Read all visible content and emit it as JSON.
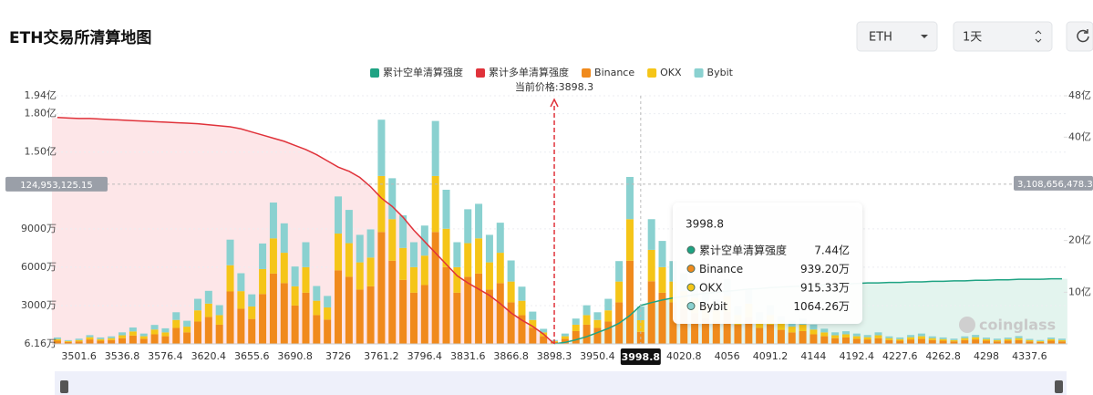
{
  "page_title": "ETH交易所清算地图",
  "controls": {
    "symbol": "ETH",
    "interval": "1天"
  },
  "watermark": "coinglass",
  "chart_data": {
    "type": "bar",
    "stacked": true,
    "grid": true,
    "current_price_label": "当前价格:3898.3",
    "current_price_index": 46,
    "categories": [
      null,
      null,
      "3501.6",
      null,
      null,
      null,
      "3536.8",
      null,
      null,
      null,
      "3576.4",
      null,
      null,
      null,
      "3620.4",
      null,
      null,
      null,
      "3655.6",
      null,
      null,
      null,
      "3690.8",
      null,
      null,
      null,
      "3726",
      null,
      null,
      null,
      "3761.2",
      null,
      null,
      null,
      "3796.4",
      null,
      null,
      null,
      "3831.6",
      null,
      null,
      null,
      "3866.8",
      null,
      null,
      null,
      "3898.3",
      null,
      null,
      null,
      "3950.4",
      null,
      null,
      null,
      "3998.8",
      null,
      null,
      null,
      "4020.8",
      null,
      null,
      null,
      "4056",
      null,
      null,
      null,
      "4091.2",
      null,
      null,
      null,
      "4144",
      null,
      null,
      null,
      "4192.4",
      null,
      null,
      null,
      "4227.6",
      null,
      null,
      null,
      "4262.8",
      null,
      null,
      null,
      "4298",
      null,
      null,
      null,
      "4337.6",
      null,
      null,
      null
    ],
    "ylim": [
      6.16,
      19400
    ],
    "yticks": [
      {
        "value": 6.16,
        "label": "6.16万"
      },
      {
        "value": 3000,
        "label": "3000万"
      },
      {
        "value": 6000,
        "label": "6000万"
      },
      {
        "value": 9000,
        "label": "9000万"
      },
      {
        "value": 15000,
        "label": "1.50亿"
      },
      {
        "value": 18000,
        "label": "1.80亿"
      },
      {
        "value": 19400,
        "label": "1.94亿"
      }
    ],
    "y2lim": [
      0,
      48
    ],
    "y2ticks": [
      {
        "value": 10,
        "label": "10亿"
      },
      {
        "value": 20,
        "label": "20亿"
      },
      {
        "value": 40,
        "label": "40亿"
      },
      {
        "value": 48,
        "label": "48亿"
      }
    ],
    "crosshair": {
      "index": 54,
      "y": {
        "value": 12495.312515,
        "label": "124,953,125.15"
      },
      "y2": {
        "value": 31.0865647832,
        "label": "3,108,656,478.32"
      }
    },
    "tooltip": [
      {
        "value": 7.44,
        "label": "7.44亿"
      },
      {
        "value": 939.2,
        "label": "939.20万"
      },
      {
        "value": 915.33,
        "label": "915.33万"
      },
      {
        "value": 1064.26,
        "label": "1064.26万"
      }
    ],
    "series": [
      {
        "name": "累计空单清算强度",
        "type": "line",
        "axis": "y2",
        "color": "#1fa383",
        "area_color": "#e3f4ee",
        "values": [
          null,
          null,
          null,
          null,
          null,
          null,
          null,
          null,
          null,
          null,
          null,
          null,
          null,
          null,
          null,
          null,
          null,
          null,
          null,
          null,
          null,
          null,
          null,
          null,
          null,
          null,
          null,
          null,
          null,
          null,
          null,
          null,
          null,
          null,
          null,
          null,
          null,
          null,
          null,
          null,
          null,
          null,
          null,
          null,
          null,
          null,
          0,
          0.3,
          0.8,
          1.4,
          2.2,
          3.0,
          4.0,
          5.5,
          7.44,
          8.0,
          8.5,
          8.9,
          9.2,
          9.5,
          9.8,
          10.0,
          10.2,
          10.4,
          10.6,
          10.7,
          10.9,
          11.0,
          11.1,
          11.2,
          11.3,
          11.4,
          11.5,
          11.6,
          11.7,
          11.8,
          11.8,
          11.9,
          11.9,
          12.0,
          12.0,
          12.1,
          12.1,
          12.2,
          12.2,
          12.3,
          12.3,
          12.4,
          12.4,
          12.5,
          12.5,
          12.5,
          12.6,
          12.6
        ]
      },
      {
        "name": "累计多单清算强度",
        "type": "line",
        "axis": "y2",
        "color": "#e0323a",
        "area_color": "#fde6e8",
        "values": [
          43.8,
          43.7,
          43.6,
          43.6,
          43.5,
          43.4,
          43.3,
          43.2,
          43.1,
          43.0,
          42.9,
          42.8,
          42.7,
          42.6,
          42.4,
          42.2,
          42.0,
          41.6,
          41.0,
          40.4,
          39.8,
          39.2,
          38.4,
          37.6,
          36.6,
          35.4,
          34.2,
          33.4,
          32.2,
          30.4,
          28.2,
          26.6,
          24.5,
          22.0,
          19.8,
          17.6,
          15.4,
          13.2,
          11.8,
          10.6,
          9.4,
          7.8,
          6.0,
          4.6,
          3.4,
          1.9,
          0,
          null,
          null,
          null,
          null,
          null,
          null,
          null,
          null,
          null,
          null,
          null,
          null,
          null,
          null,
          null,
          null,
          null,
          null,
          null,
          null,
          null,
          null,
          null,
          null,
          null,
          null,
          null,
          null,
          null,
          null,
          null,
          null,
          null,
          null,
          null,
          null,
          null,
          null,
          null,
          null,
          null,
          null,
          null,
          null,
          null,
          null,
          null
        ]
      },
      {
        "name": "Binance",
        "type": "bar",
        "color": "#f08a1c",
        "values": [
          250,
          150,
          200,
          350,
          250,
          300,
          450,
          650,
          400,
          750,
          600,
          1250,
          900,
          1750,
          2100,
          1500,
          4100,
          2750,
          1950,
          3900,
          5500,
          4750,
          3000,
          4000,
          2250,
          1900,
          5750,
          5250,
          4250,
          4500,
          8750,
          6500,
          5000,
          4000,
          4600,
          8750,
          6000,
          4000,
          5250,
          5500,
          4250,
          4750,
          3250,
          2250,
          1250,
          600,
          150,
          400,
          1000,
          1500,
          1250,
          1750,
          3250,
          6500,
          939.2,
          4900,
          4000,
          3250,
          2750,
          2400,
          2000,
          1750,
          2500,
          1500,
          2100,
          1250,
          1500,
          1100,
          900,
          1000,
          750,
          600,
          450,
          500,
          400,
          350,
          450,
          300,
          250,
          350,
          400,
          300,
          250,
          200,
          300,
          350,
          250,
          200,
          250,
          300,
          200,
          150,
          250,
          200
        ]
      },
      {
        "name": "OKX",
        "type": "bar",
        "color": "#f5c518",
        "values": [
          125,
          75,
          100,
          175,
          125,
          150,
          225,
          325,
          200,
          375,
          300,
          625,
          450,
          875,
          1050,
          750,
          2050,
          1375,
          975,
          1950,
          2750,
          2375,
          1500,
          2000,
          1125,
          950,
          2875,
          2625,
          2125,
          2250,
          4375,
          3250,
          2500,
          2000,
          2300,
          4375,
          3000,
          2000,
          2625,
          2750,
          2125,
          2375,
          1625,
          1125,
          625,
          300,
          75,
          200,
          500,
          750,
          625,
          875,
          1625,
          3250,
          915.33,
          2450,
          2000,
          1625,
          1375,
          1200,
          1000,
          875,
          1250,
          750,
          1050,
          625,
          750,
          550,
          450,
          500,
          375,
          300,
          225,
          250,
          200,
          175,
          225,
          150,
          125,
          175,
          200,
          150,
          125,
          100,
          150,
          175,
          125,
          100,
          125,
          150,
          100,
          75,
          125,
          100
        ]
      },
      {
        "name": "Bybit",
        "type": "bar",
        "color": "#8ad1d0",
        "values": [
          130,
          70,
          110,
          160,
          130,
          140,
          230,
          310,
          210,
          360,
          320,
          600,
          460,
          900,
          1000,
          780,
          2000,
          1400,
          950,
          2000,
          2800,
          2300,
          1550,
          1950,
          1150,
          900,
          2900,
          2600,
          2150,
          2200,
          4400,
          3200,
          2550,
          1950,
          2350,
          4300,
          3050,
          1950,
          2650,
          2700,
          2150,
          2350,
          1650,
          1100,
          650,
          280,
          80,
          210,
          480,
          770,
          600,
          900,
          1600,
          3300,
          1064.26,
          2400,
          2050,
          1600,
          1400,
          1150,
          1050,
          850,
          1300,
          700,
          1100,
          600,
          780,
          520,
          470,
          480,
          390,
          290,
          230,
          240,
          210,
          170,
          230,
          140,
          130,
          170,
          210,
          140,
          130,
          110,
          140,
          180,
          120,
          110,
          120,
          160,
          90,
          80,
          120,
          110
        ]
      }
    ]
  }
}
